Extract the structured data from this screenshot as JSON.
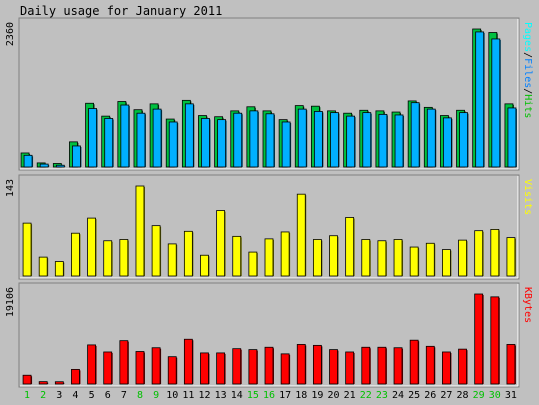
{
  "chart_data": {
    "type": "bar",
    "title": "Daily usage for January 2011",
    "categories": [
      "1",
      "2",
      "3",
      "4",
      "5",
      "6",
      "7",
      "8",
      "9",
      "10",
      "11",
      "12",
      "13",
      "14",
      "15",
      "16",
      "17",
      "18",
      "19",
      "20",
      "21",
      "22",
      "23",
      "24",
      "25",
      "26",
      "27",
      "28",
      "29",
      "30",
      "31"
    ],
    "weekend_days": [
      "1",
      "2",
      "8",
      "9",
      "15",
      "16",
      "22",
      "23",
      "29",
      "30"
    ],
    "panels": [
      {
        "id": "hits-files-pages",
        "ymax_label": "2360",
        "ylim": [
          0,
          2360
        ],
        "legend_parts": [
          {
            "text": "Pages",
            "color": "#00ffff"
          },
          {
            "text": "/",
            "color": "#000000"
          },
          {
            "text": "Files",
            "color": "#0080ff"
          },
          {
            "text": "/",
            "color": "#000000"
          },
          {
            "text": "Hits",
            "color": "#00c000"
          }
        ],
        "series": [
          {
            "name": "Hits",
            "color": "#00c040",
            "values": [
              240,
              70,
              60,
              430,
              1090,
              870,
              1120,
              980,
              1080,
              820,
              1140,
              880,
              860,
              960,
              1030,
              960,
              810,
              1050,
              1040,
              960,
              920,
              970,
              960,
              940,
              1130,
              1020,
              880,
              970,
              2360,
              2300,
              1080
            ]
          },
          {
            "name": "Files",
            "color": "#00b0ff",
            "values": [
              200,
              50,
              30,
              360,
              1000,
              830,
              1060,
              920,
              990,
              770,
              1080,
              830,
              810,
              920,
              960,
              910,
              770,
              990,
              950,
              930,
              870,
              930,
              900,
              890,
              1100,
              990,
              840,
              930,
              2310,
              2190,
              1010
            ]
          }
        ]
      },
      {
        "id": "visits",
        "ymax_label": "143",
        "ylim": [
          0,
          143
        ],
        "legend_parts": [
          {
            "text": "Visits",
            "color": "#ffff00"
          }
        ],
        "series": [
          {
            "name": "Visits",
            "color": "#ffff00",
            "values": [
              84,
              30,
              23,
              68,
              92,
              56,
              58,
              143,
              80,
              51,
              71,
              33,
              104,
              63,
              38,
              59,
              70,
              130,
              58,
              64,
              93,
              58,
              56,
              58,
              46,
              52,
              42,
              57,
              72,
              74,
              61
            ]
          }
        ]
      },
      {
        "id": "kbytes",
        "ymax_label": "19106",
        "ylim": [
          0,
          19106
        ],
        "legend_parts": [
          {
            "text": "KBytes",
            "color": "#ff0000"
          }
        ],
        "series": [
          {
            "name": "KBytes",
            "color": "#ff0000",
            "values": [
              1860,
              500,
              480,
              3100,
              8300,
              6800,
              9200,
              6900,
              7700,
              5800,
              9500,
              6600,
              6600,
              7500,
              7300,
              7800,
              6400,
              8400,
              8200,
              7300,
              6800,
              7800,
              7800,
              7700,
              9300,
              8000,
              6800,
              7400,
              19106,
              18500,
              8400
            ]
          }
        ]
      }
    ],
    "x_label_colors": {
      "weekday": "#000000",
      "weekend": "#00c000"
    },
    "background": "#c0c0c0"
  }
}
